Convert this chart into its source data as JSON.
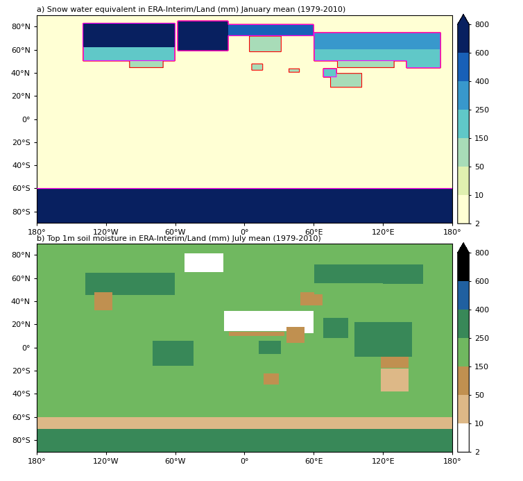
{
  "title_a": "a) Snow water equivalent in ERA-Interim/Land (mm) January mean (1979-2010)",
  "title_b": "b) Top 1m soil moisture in ERA-Interim/Land (mm) July mean (1979-2010)",
  "colorbar_levels": [
    2,
    10,
    50,
    150,
    250,
    400,
    600,
    800
  ],
  "colorbar_colors_snow": [
    "#ffffd4",
    "#e0f0b0",
    "#a8dcb8",
    "#60c8c8",
    "#3898cc",
    "#1860b8",
    "#082060"
  ],
  "colorbar_colors_soil": [
    "#ffffff",
    "#ddb887",
    "#c09050",
    "#70b860",
    "#388858",
    "#2060a0",
    "#000000"
  ],
  "lon_ticks": [
    -180,
    -120,
    -60,
    0,
    60,
    120,
    180
  ],
  "lon_labels": [
    "180°",
    "120°W",
    "60°W",
    "0°",
    "60°E",
    "120°E",
    "180°"
  ],
  "lat_ticks": [
    -80,
    -60,
    -40,
    -20,
    0,
    20,
    40,
    60,
    80
  ],
  "lat_labels": [
    "80°S",
    "60°S",
    "40°S",
    "20°S",
    "0°",
    "20°N",
    "40°N",
    "60°N",
    "80°N"
  ],
  "background_color": "#ffffff",
  "ocean_color": "#ffffff",
  "grid_color": "#888888",
  "fig_width": 7.54,
  "fig_height": 6.93
}
